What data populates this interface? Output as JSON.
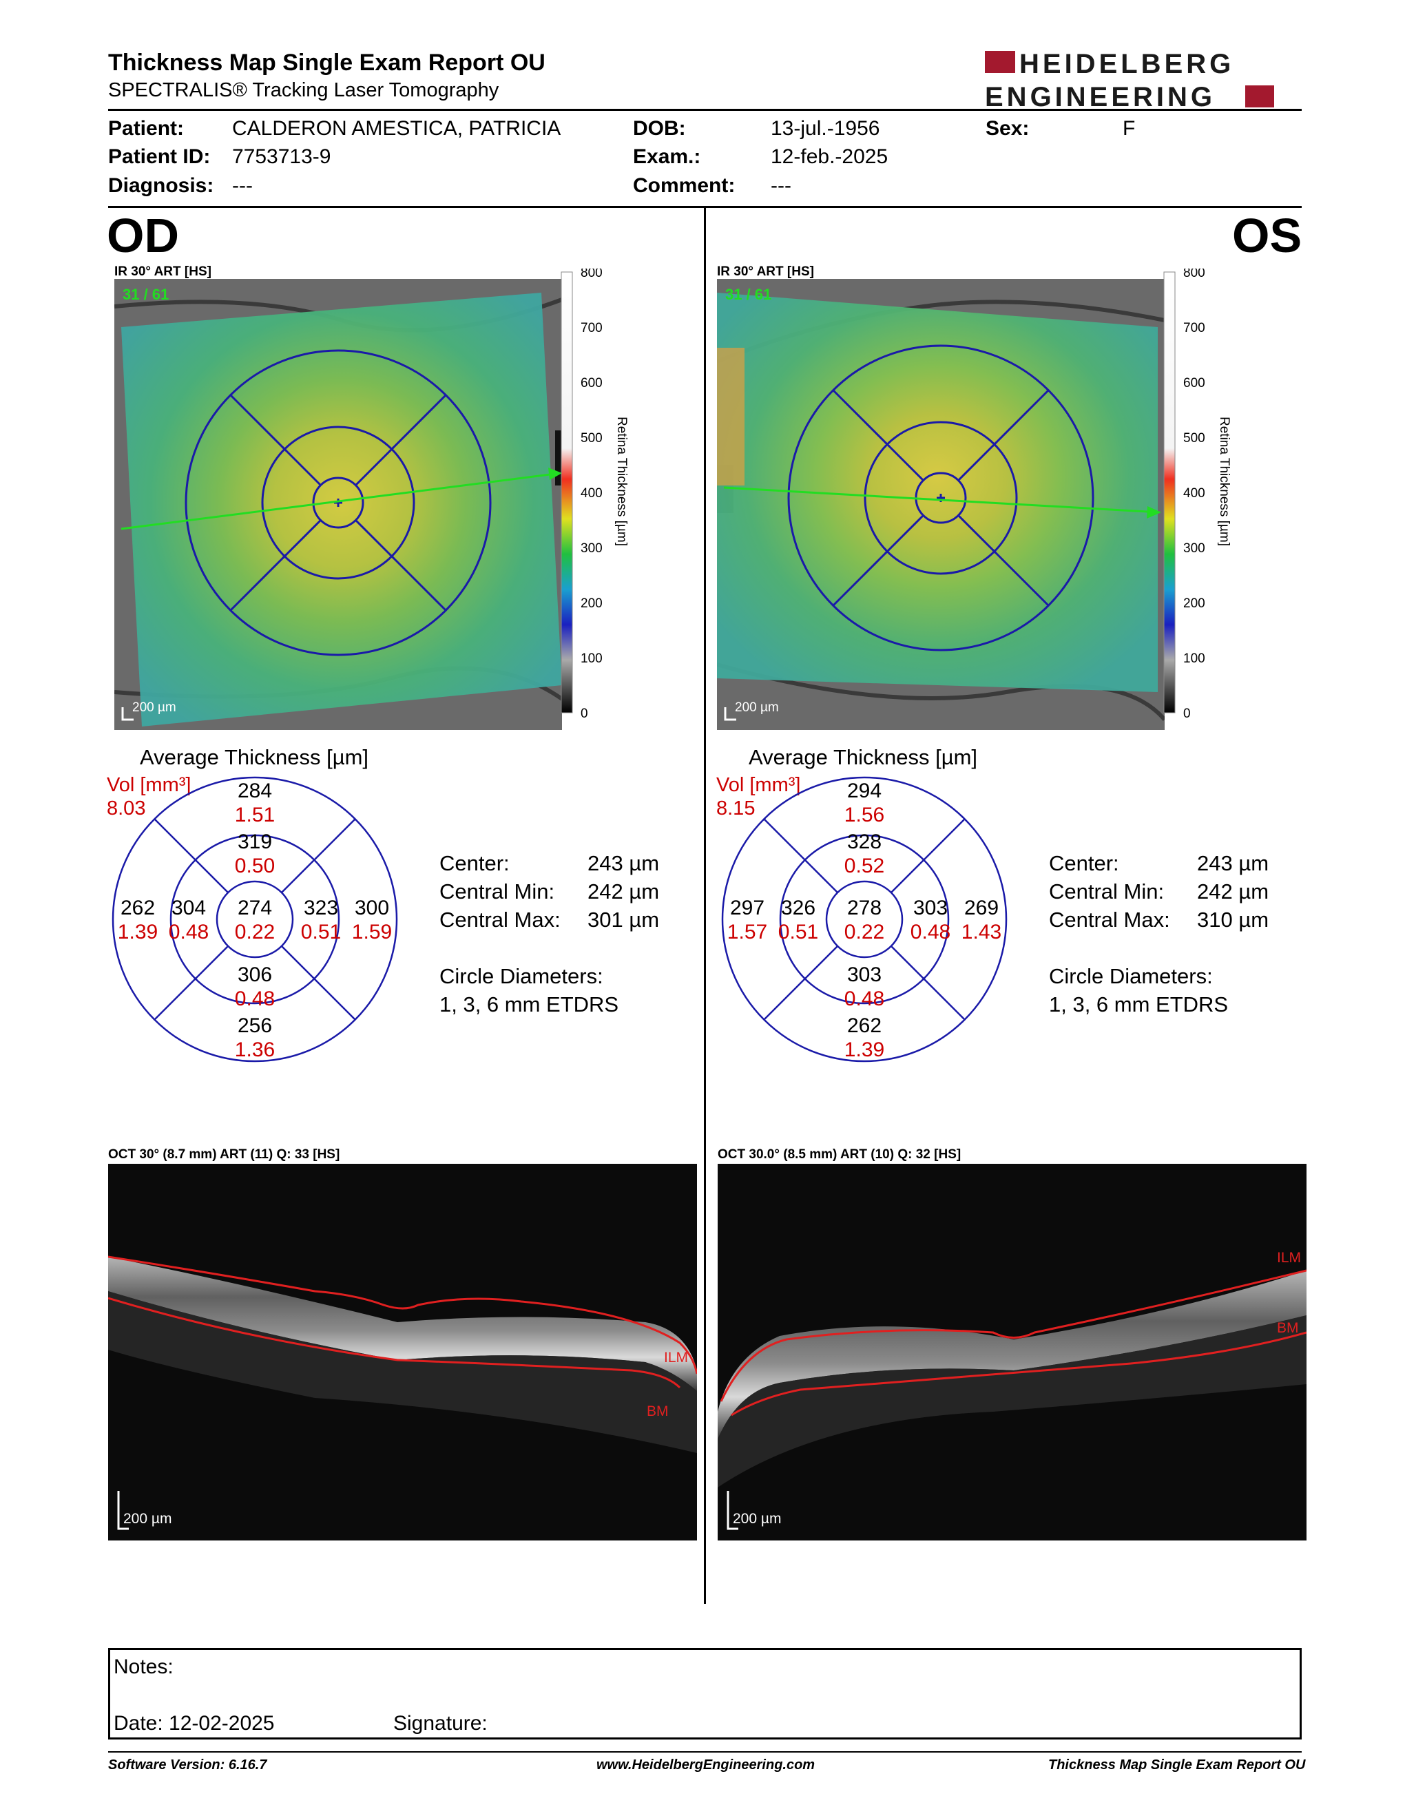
{
  "header": {
    "title": "Thickness Map Single Exam Report OU",
    "subtitle": "SPECTRALIS® Tracking Laser Tomography",
    "logo_line1": "HEIDELBERG",
    "logo_line2": "ENGINEERING"
  },
  "patient": {
    "patient_label": "Patient:",
    "patient_value": "CALDERON AMESTICA, PATRICIA",
    "id_label": "Patient ID:",
    "id_value": "7753713-9",
    "diagnosis_label": "Diagnosis:",
    "diagnosis_value": "---",
    "dob_label": "DOB:",
    "dob_value": "13-jul.-1956",
    "exam_label": "Exam.:",
    "exam_value": "12-feb.-2025",
    "comment_label": "Comment:",
    "comment_value": "---",
    "sex_label": "Sex:",
    "sex_value": "F"
  },
  "colorbar": {
    "ticks": [
      "800",
      "700",
      "600",
      "500",
      "400",
      "300",
      "200",
      "100",
      "0"
    ],
    "label": "Retina Thickness [µm]"
  },
  "od": {
    "eye": "OD",
    "ir_title": "IR 30° ART [HS]",
    "frame_count": "31 / 61",
    "scale": "200 µm",
    "avg_title": "Average Thickness [µm]",
    "vol_label": "Vol [mm³]",
    "vol_total": "8.03",
    "sectors": {
      "center_t": "274",
      "center_v": "0.22",
      "inner_sup_t": "319",
      "inner_sup_v": "0.50",
      "inner_inf_t": "306",
      "inner_inf_v": "0.48",
      "inner_left_t": "304",
      "inner_left_v": "0.48",
      "inner_right_t": "323",
      "inner_right_v": "0.51",
      "outer_sup_t": "284",
      "outer_sup_v": "1.51",
      "outer_inf_t": "256",
      "outer_inf_v": "1.36",
      "outer_left_t": "262",
      "outer_left_v": "1.39",
      "outer_right_t": "300",
      "outer_right_v": "1.59"
    },
    "stats": {
      "center_label": "Center:",
      "center_value": "243 µm",
      "min_label": "Central Min:",
      "min_value": "242 µm",
      "max_label": "Central Max:",
      "max_value": "301 µm",
      "circle_label": "Circle Diameters:",
      "circle_value": "1, 3, 6 mm ETDRS"
    },
    "oct_title": "OCT 30° (8.7 mm) ART (11) Q: 33 [HS]",
    "oct_ilm": "ILM",
    "oct_bm": "BM",
    "oct_scale": "200 µm"
  },
  "os": {
    "eye": "OS",
    "ir_title": "IR 30° ART [HS]",
    "frame_count": "31 / 61",
    "scale": "200 µm",
    "avg_title": "Average Thickness [µm]",
    "vol_label": "Vol [mm³]",
    "vol_total": "8.15",
    "sectors": {
      "center_t": "278",
      "center_v": "0.22",
      "inner_sup_t": "328",
      "inner_sup_v": "0.52",
      "inner_inf_t": "303",
      "inner_inf_v": "0.48",
      "inner_left_t": "326",
      "inner_left_v": "0.51",
      "inner_right_t": "303",
      "inner_right_v": "0.48",
      "outer_sup_t": "294",
      "outer_sup_v": "1.56",
      "outer_inf_t": "262",
      "outer_inf_v": "1.39",
      "outer_left_t": "297",
      "outer_left_v": "1.57",
      "outer_right_t": "269",
      "outer_right_v": "1.43"
    },
    "stats": {
      "center_label": "Center:",
      "center_value": "243 µm",
      "min_label": "Central Min:",
      "min_value": "242 µm",
      "max_label": "Central Max:",
      "max_value": "310 µm",
      "circle_label": "Circle Diameters:",
      "circle_value": "1, 3, 6 mm ETDRS"
    },
    "oct_title": "OCT 30.0° (8.5 mm) ART (10) Q: 32 [HS]",
    "oct_ilm": "ILM",
    "oct_bm": "BM",
    "oct_scale": "200 µm"
  },
  "notes": {
    "notes_label": "Notes:",
    "date_label": "Date: 12-02-2025",
    "signature_label": "Signature:"
  },
  "footer": {
    "software": "Software Version: 6.16.7",
    "website": "www.HeidelbergEngineering.com",
    "report": "Thickness Map Single Exam Report OU"
  },
  "colors": {
    "grid_blue": "#1a1aa8",
    "volume_red": "#cc0000",
    "logo_red": "#a3192e",
    "fixation_green": "#22dd22"
  }
}
